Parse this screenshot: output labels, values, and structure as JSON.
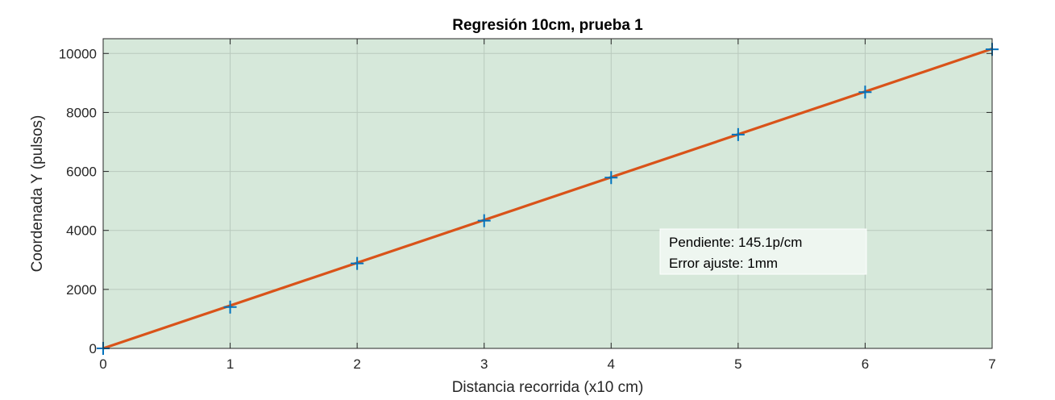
{
  "chart_data": {
    "type": "scatter",
    "title": "Regresión 10cm, prueba 1",
    "xlabel": "Distancia recorrida (x10 cm)",
    "ylabel": "Coordenada Y (pulsos)",
    "xlim": [
      0,
      7
    ],
    "ylim": [
      0,
      10500
    ],
    "xticks": [
      0,
      1,
      2,
      3,
      4,
      5,
      6,
      7
    ],
    "yticks": [
      0,
      2000,
      4000,
      6000,
      8000,
      10000
    ],
    "grid": true,
    "series": [
      {
        "type": "scatter",
        "marker": "+",
        "color": "#0072BD",
        "x": [
          0,
          1,
          2,
          3,
          4,
          5,
          6,
          7
        ],
        "y": [
          0,
          1400,
          2880,
          4330,
          5790,
          7250,
          8690,
          10140
        ]
      },
      {
        "type": "line",
        "color": "#D95319",
        "x": [
          0,
          7
        ],
        "y": [
          0,
          10157
        ]
      }
    ],
    "annotation": {
      "lines": [
        "Pendiente: 145.1p/cm",
        "Error ajuste: 1mm"
      ]
    },
    "colors": {
      "plot_background": "#d6e8da",
      "grid": "#b9c9bd"
    }
  }
}
